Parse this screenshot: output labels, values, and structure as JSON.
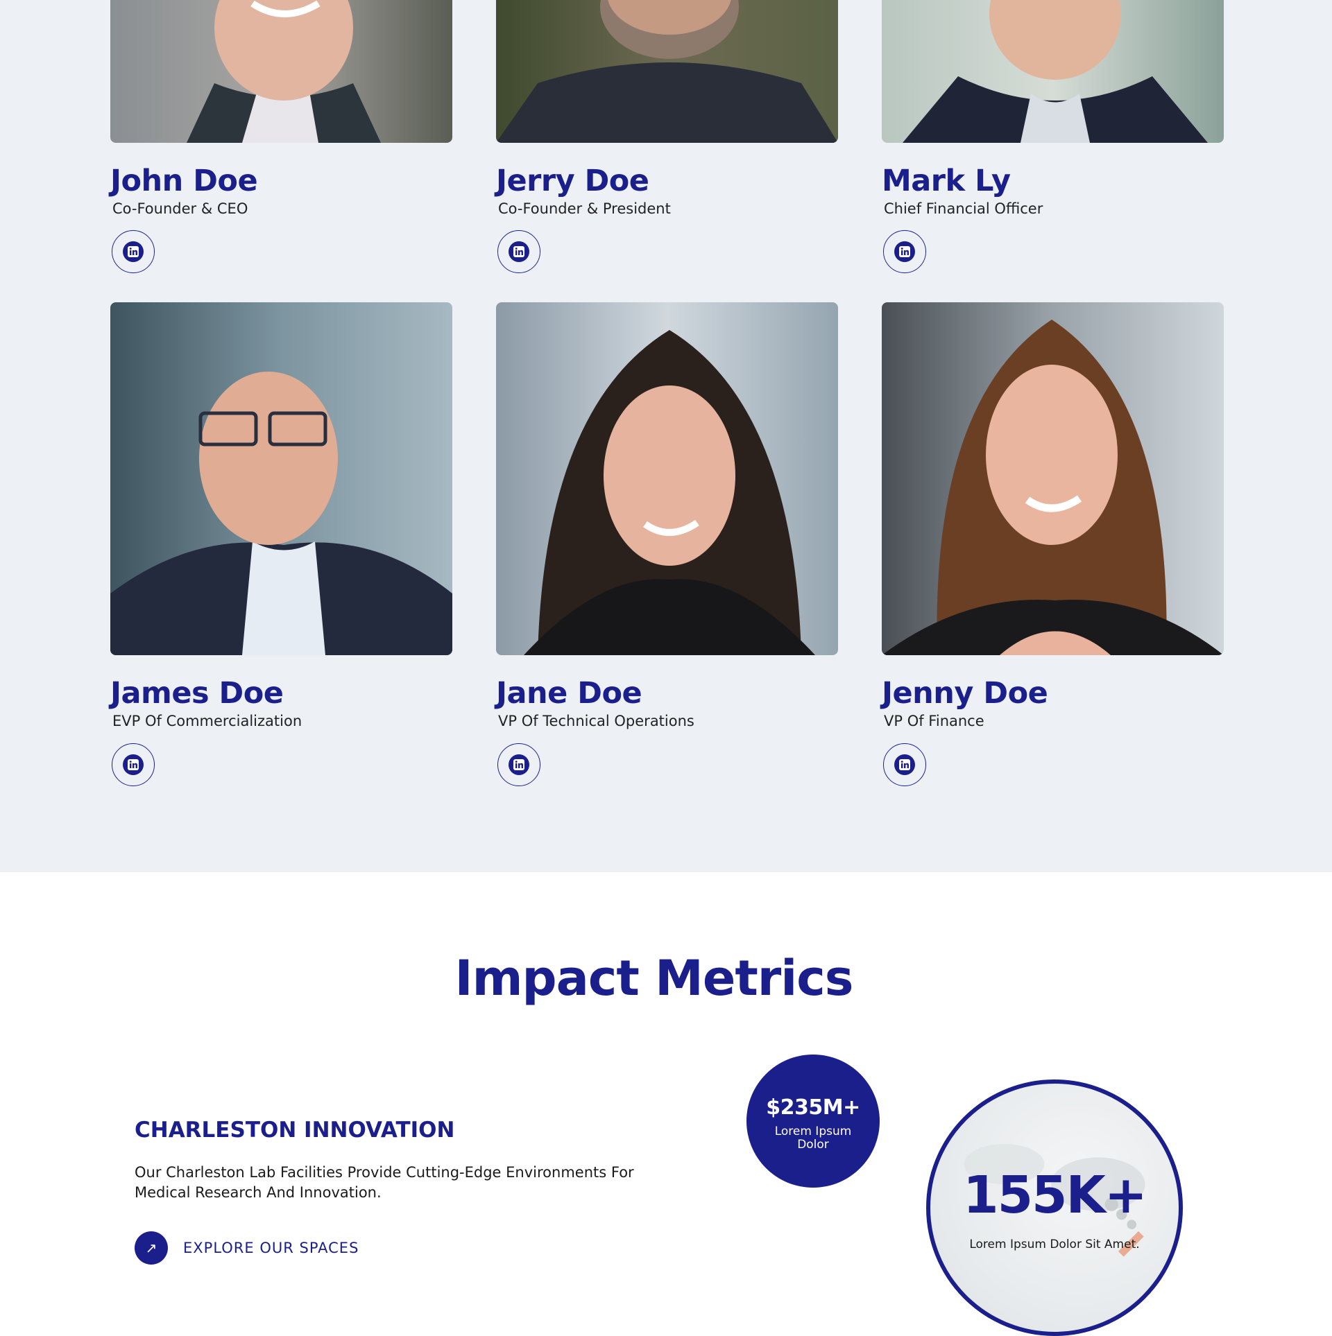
{
  "team": {
    "members": [
      {
        "name": "John Doe",
        "role": "Co-Founder & CEO",
        "social": "linkedin-icon"
      },
      {
        "name": "Jerry Doe",
        "role": "Co-Founder & President",
        "social": "linkedin-icon"
      },
      {
        "name": "Mark Ly",
        "role": "Chief Financial Officer",
        "social": "linkedin-icon"
      },
      {
        "name": "James Doe",
        "role": "EVP Of Commercialization",
        "social": "linkedin-icon"
      },
      {
        "name": "Jane Doe",
        "role": "VP Of Technical Operations",
        "social": "linkedin-icon"
      },
      {
        "name": "Jenny Doe",
        "role": "VP Of Finance",
        "social": "linkedin-icon"
      }
    ]
  },
  "metrics": {
    "title": "Impact Metrics",
    "heading": "CHARLESTON INNOVATION",
    "description": "Our Charleston Lab Facilities Provide Cutting-Edge Environments For Medical Research And Innovation.",
    "cta_label": "EXPLORE OUR SPACES",
    "cta_icon": "arrow-up-right-icon",
    "stats": [
      {
        "value": "$235M+",
        "caption": "Lorem Ipsum Dolor"
      },
      {
        "value": "155K+",
        "caption": "Lorem Ipsum Dolor Sit Amet."
      }
    ]
  },
  "colors": {
    "brand": "#1b1f8c",
    "section_bg": "#edf1f5",
    "page_bg": "#ffffff",
    "text": "#222222"
  }
}
